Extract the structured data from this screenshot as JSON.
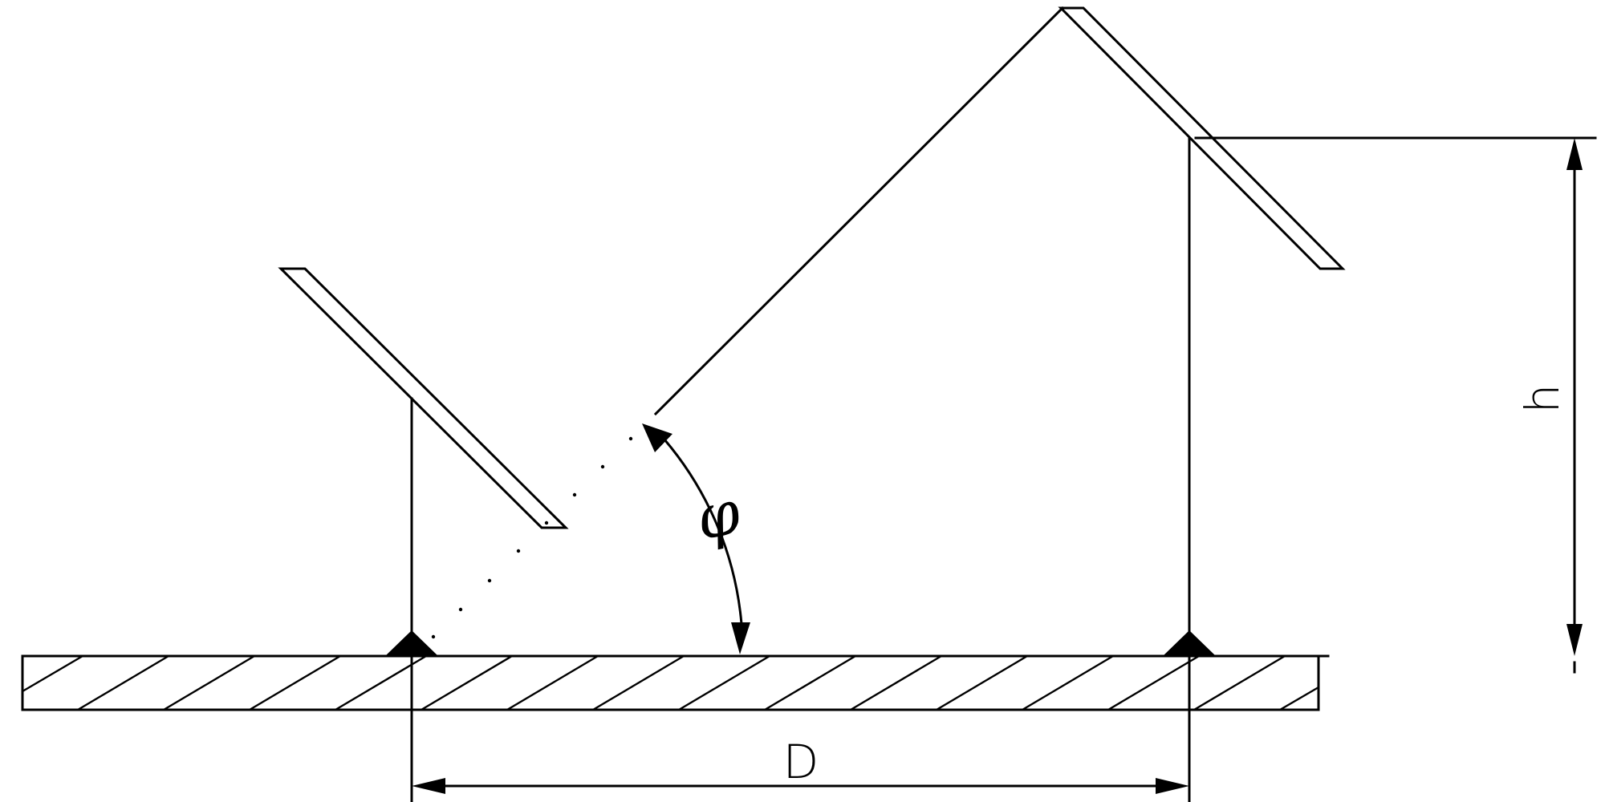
{
  "labels": {
    "distance": "D",
    "height": "h",
    "angle": "φ"
  },
  "colors": {
    "line": "#000000",
    "background": "#ffffff"
  }
}
